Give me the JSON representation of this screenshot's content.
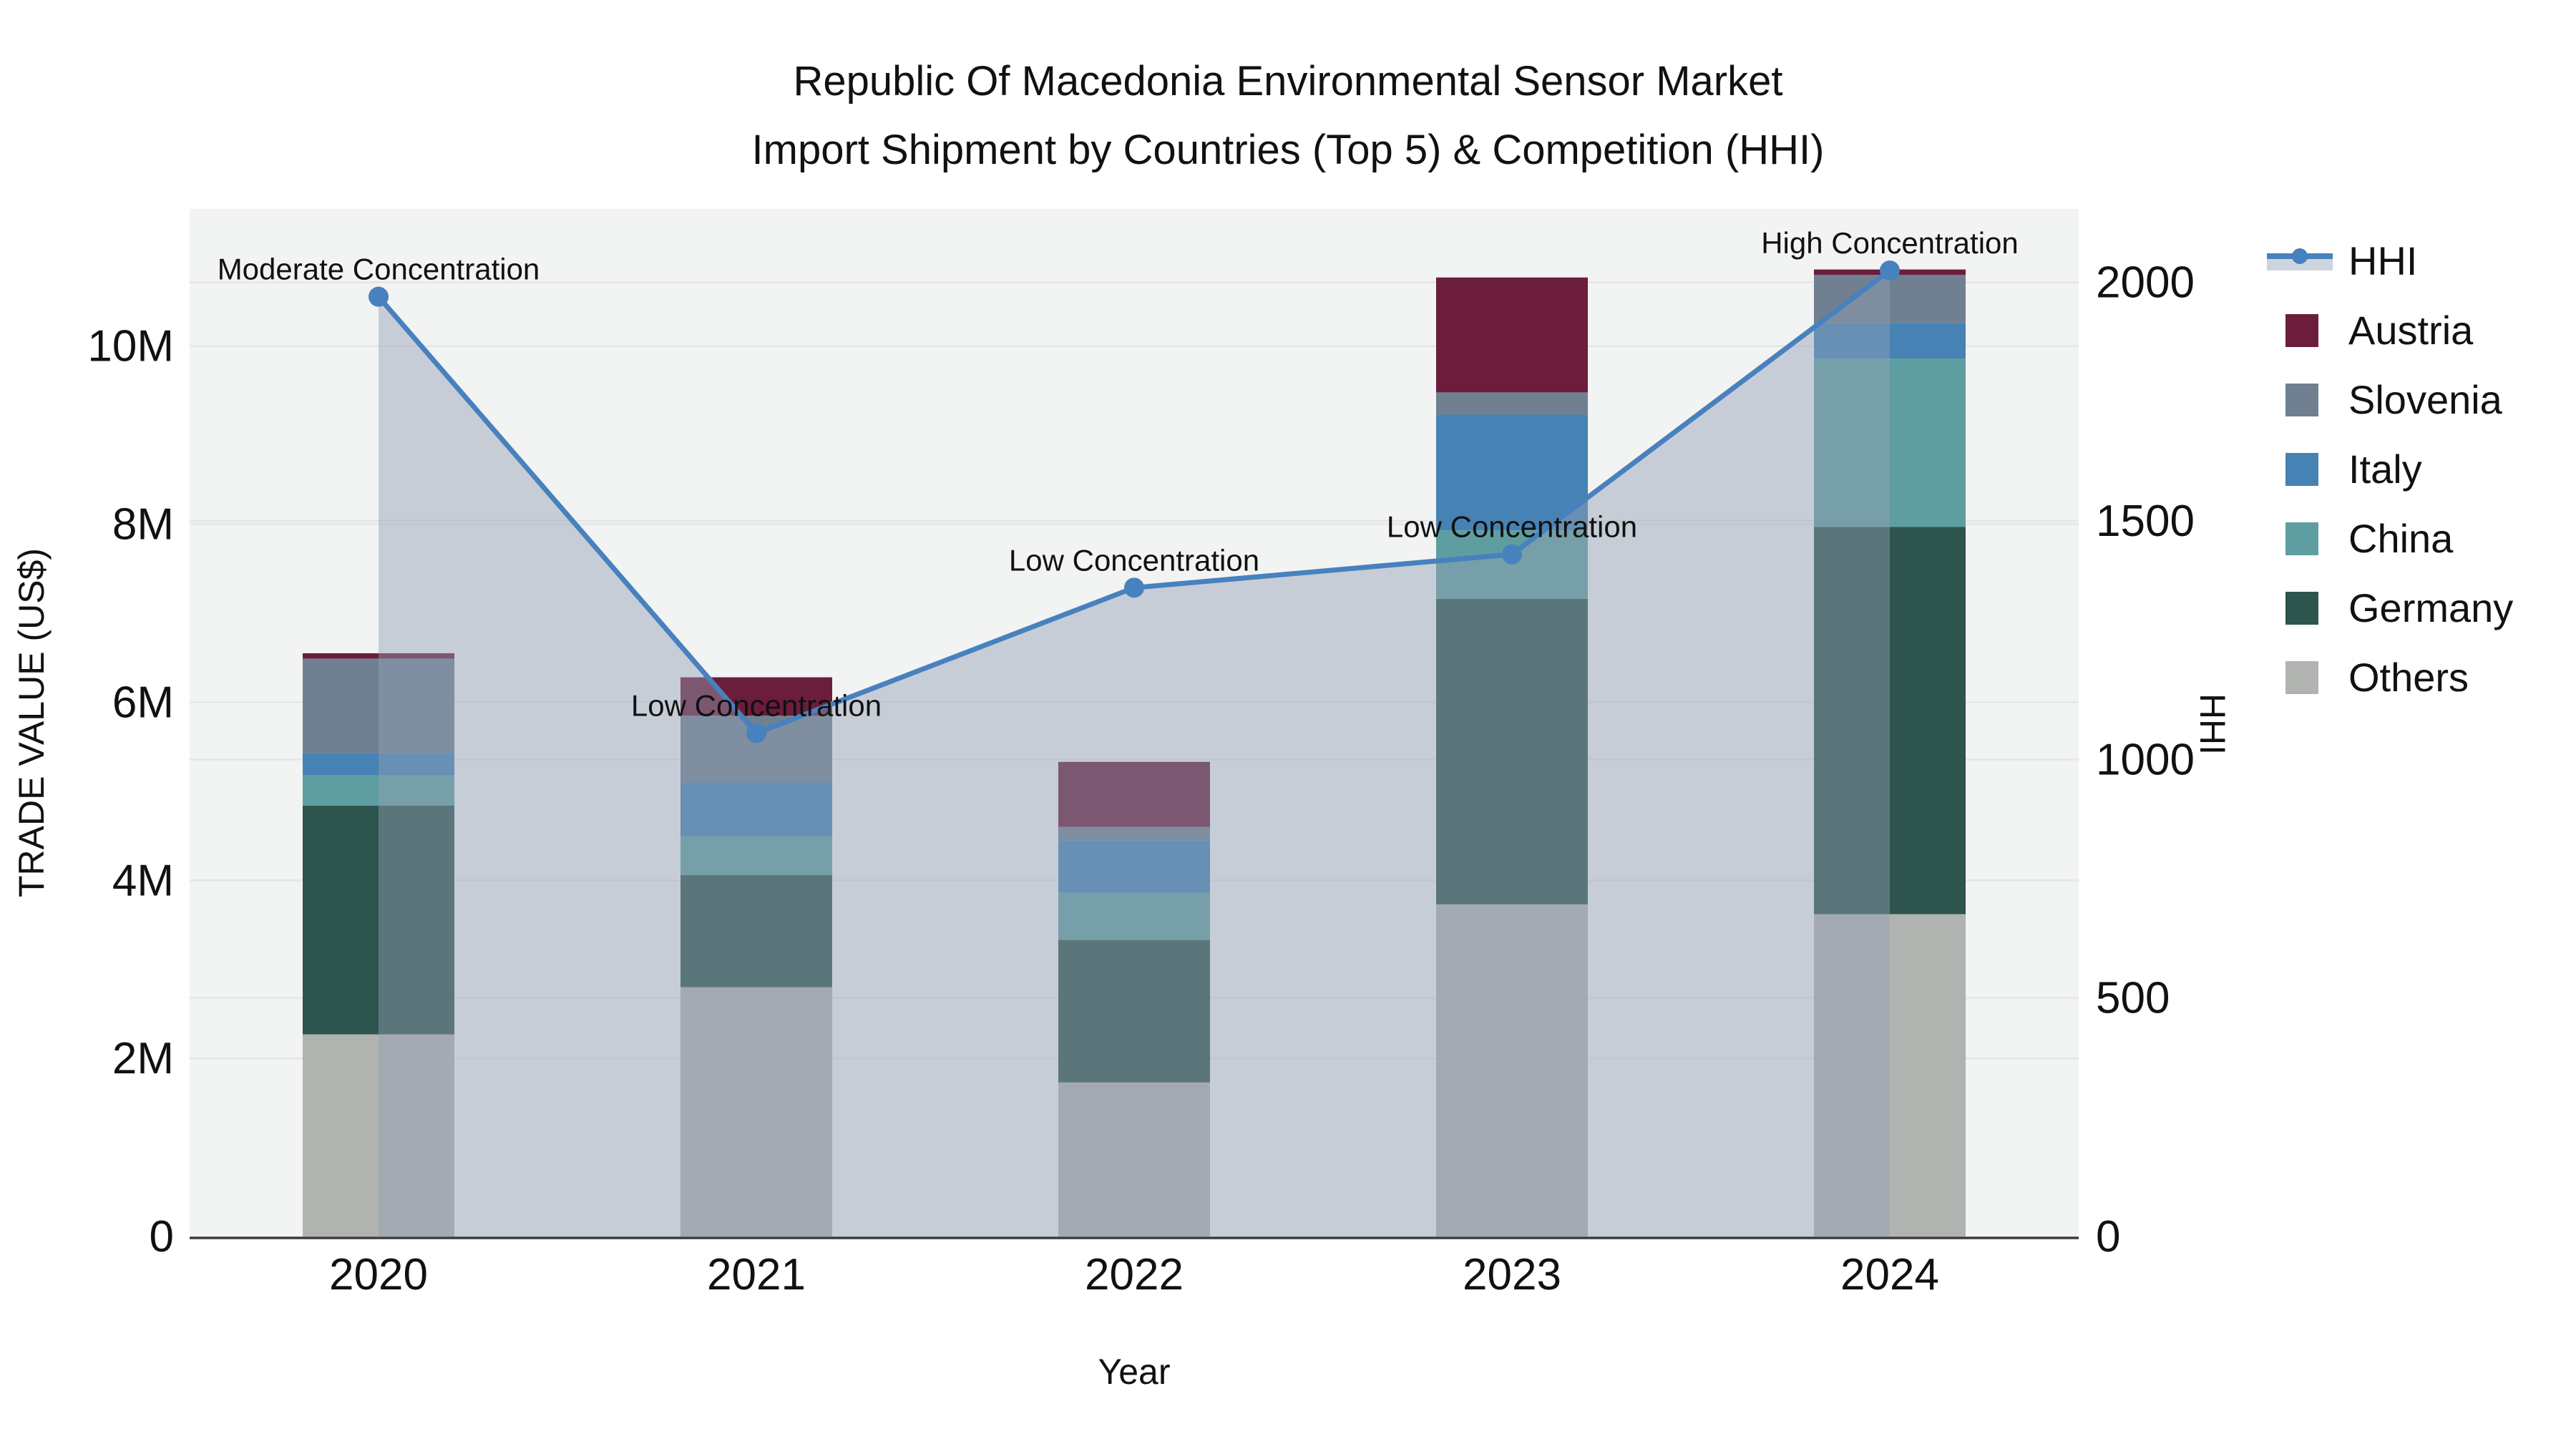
{
  "title": {
    "line1": "Republic Of Macedonia Environmental Sensor Market",
    "line2": "Import Shipment by Countries (Top 5) & Competition (HHI)"
  },
  "axes": {
    "x_title": "Year",
    "y1_title": "TRADE VALUE (US$)",
    "y2_title": "HHI",
    "y1_ticks": [
      {
        "label": "0",
        "value_millions": 0
      },
      {
        "label": "2M",
        "value_millions": 2
      },
      {
        "label": "4M",
        "value_millions": 4
      },
      {
        "label": "6M",
        "value_millions": 6
      },
      {
        "label": "8M",
        "value_millions": 8
      },
      {
        "label": "10M",
        "value_millions": 10
      }
    ],
    "y2_ticks": [
      {
        "label": "0",
        "value": 0
      },
      {
        "label": "500",
        "value": 500
      },
      {
        "label": "1000",
        "value": 1000
      },
      {
        "label": "1500",
        "value": 1500
      },
      {
        "label": "2000",
        "value": 2000
      }
    ]
  },
  "chart_data": {
    "type": "combo: stacked bar (trade value by country) + line with area fill (HHI)",
    "categories": [
      "2020",
      "2021",
      "2022",
      "2023",
      "2024"
    ],
    "xlabel": "Year",
    "ylabel_left": "TRADE VALUE (US$)",
    "ylabel_right": "HHI",
    "y1_max_millions": 11.54,
    "y2_max": 2154,
    "grid": true,
    "legend_position": "right",
    "stack_order_bottom_to_top": [
      "Others",
      "Germany",
      "China",
      "Italy",
      "Slovenia",
      "Austria"
    ],
    "series": [
      {
        "name": "Others",
        "color": "#B1B3B0",
        "values_millions": [
          2.27,
          2.8,
          1.73,
          3.73,
          3.62
        ]
      },
      {
        "name": "Germany",
        "color": "#2E544E",
        "values_millions": [
          2.57,
          1.26,
          1.6,
          3.43,
          4.35
        ]
      },
      {
        "name": "China",
        "color": "#5F9EA0",
        "values_millions": [
          0.34,
          0.43,
          0.53,
          0.77,
          1.89
        ]
      },
      {
        "name": "Italy",
        "color": "#4682B4",
        "values_millions": [
          0.25,
          0.61,
          0.59,
          1.3,
          0.4
        ]
      },
      {
        "name": "Slovenia",
        "color": "#708090",
        "values_millions": [
          1.06,
          0.75,
          0.15,
          0.25,
          0.54
        ]
      },
      {
        "name": "Austria",
        "color": "#6B1D3B",
        "values_millions": [
          0.06,
          0.43,
          0.73,
          1.29,
          0.06
        ]
      }
    ],
    "line_series": {
      "name": "HHI",
      "axis": "y2",
      "color": "#4781BE",
      "area_fill": "rgba(146,159,179,0.45)",
      "values": [
        1970,
        1055,
        1360,
        1430,
        2025
      ]
    },
    "annotations": [
      {
        "category": "2020",
        "text": "Moderate Concentration"
      },
      {
        "category": "2021",
        "text": "Low Concentration"
      },
      {
        "category": "2022",
        "text": "Low Concentration"
      },
      {
        "category": "2023",
        "text": "Low Concentration"
      },
      {
        "category": "2024",
        "text": "High Concentration"
      }
    ],
    "legend_order": [
      "HHI",
      "Austria",
      "Slovenia",
      "Italy",
      "China",
      "Germany",
      "Others"
    ]
  },
  "style": {
    "plot_bg": "#F2F3F3",
    "grid_color": "#E4E6E6",
    "axis_line_color": "#3A3A3A",
    "text_color": "#111111"
  }
}
